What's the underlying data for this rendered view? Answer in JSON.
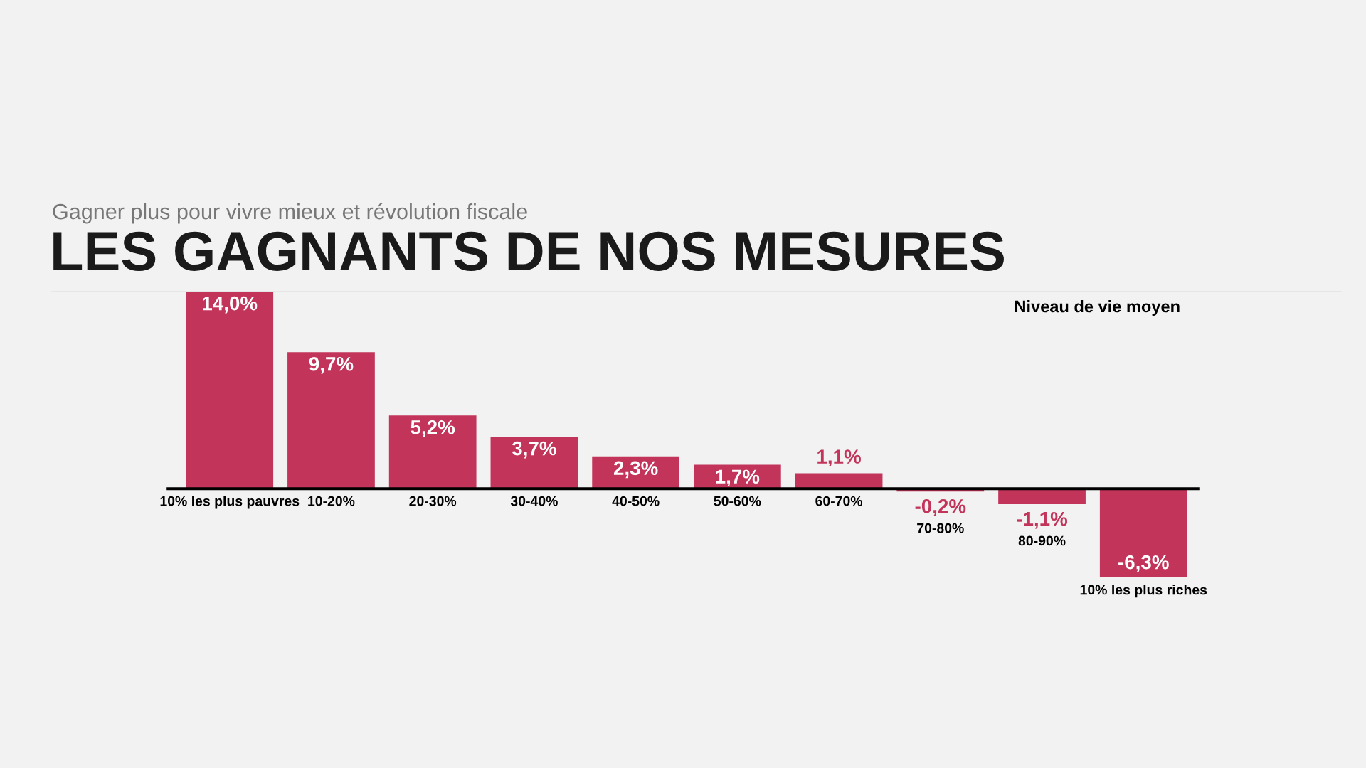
{
  "chart_data": {
    "type": "bar",
    "title": "LES GAGNANTS DE NOS MESURES",
    "subtitle": "Gagner plus pour vivre mieux et révolution fiscale",
    "categories": [
      "10% les plus pauvres",
      "10-20%",
      "20-30%",
      "30-40%",
      "40-50%",
      "50-60%",
      "60-70%",
      "70-80%",
      "80-90%",
      "10% les plus riches"
    ],
    "values": [
      14.0,
      9.7,
      5.2,
      3.7,
      2.3,
      1.7,
      1.1,
      -0.2,
      -1.1,
      -6.3
    ],
    "value_labels": [
      "14,0%",
      "9,7%",
      "5,2%",
      "3,7%",
      "2,3%",
      "1,7%",
      "1,1%",
      "-0,2%",
      "-1,1%",
      "-6,3%"
    ],
    "color": "#c2345a",
    "annotations": [
      "Niveau de vie moyen"
    ],
    "legend": false
  }
}
